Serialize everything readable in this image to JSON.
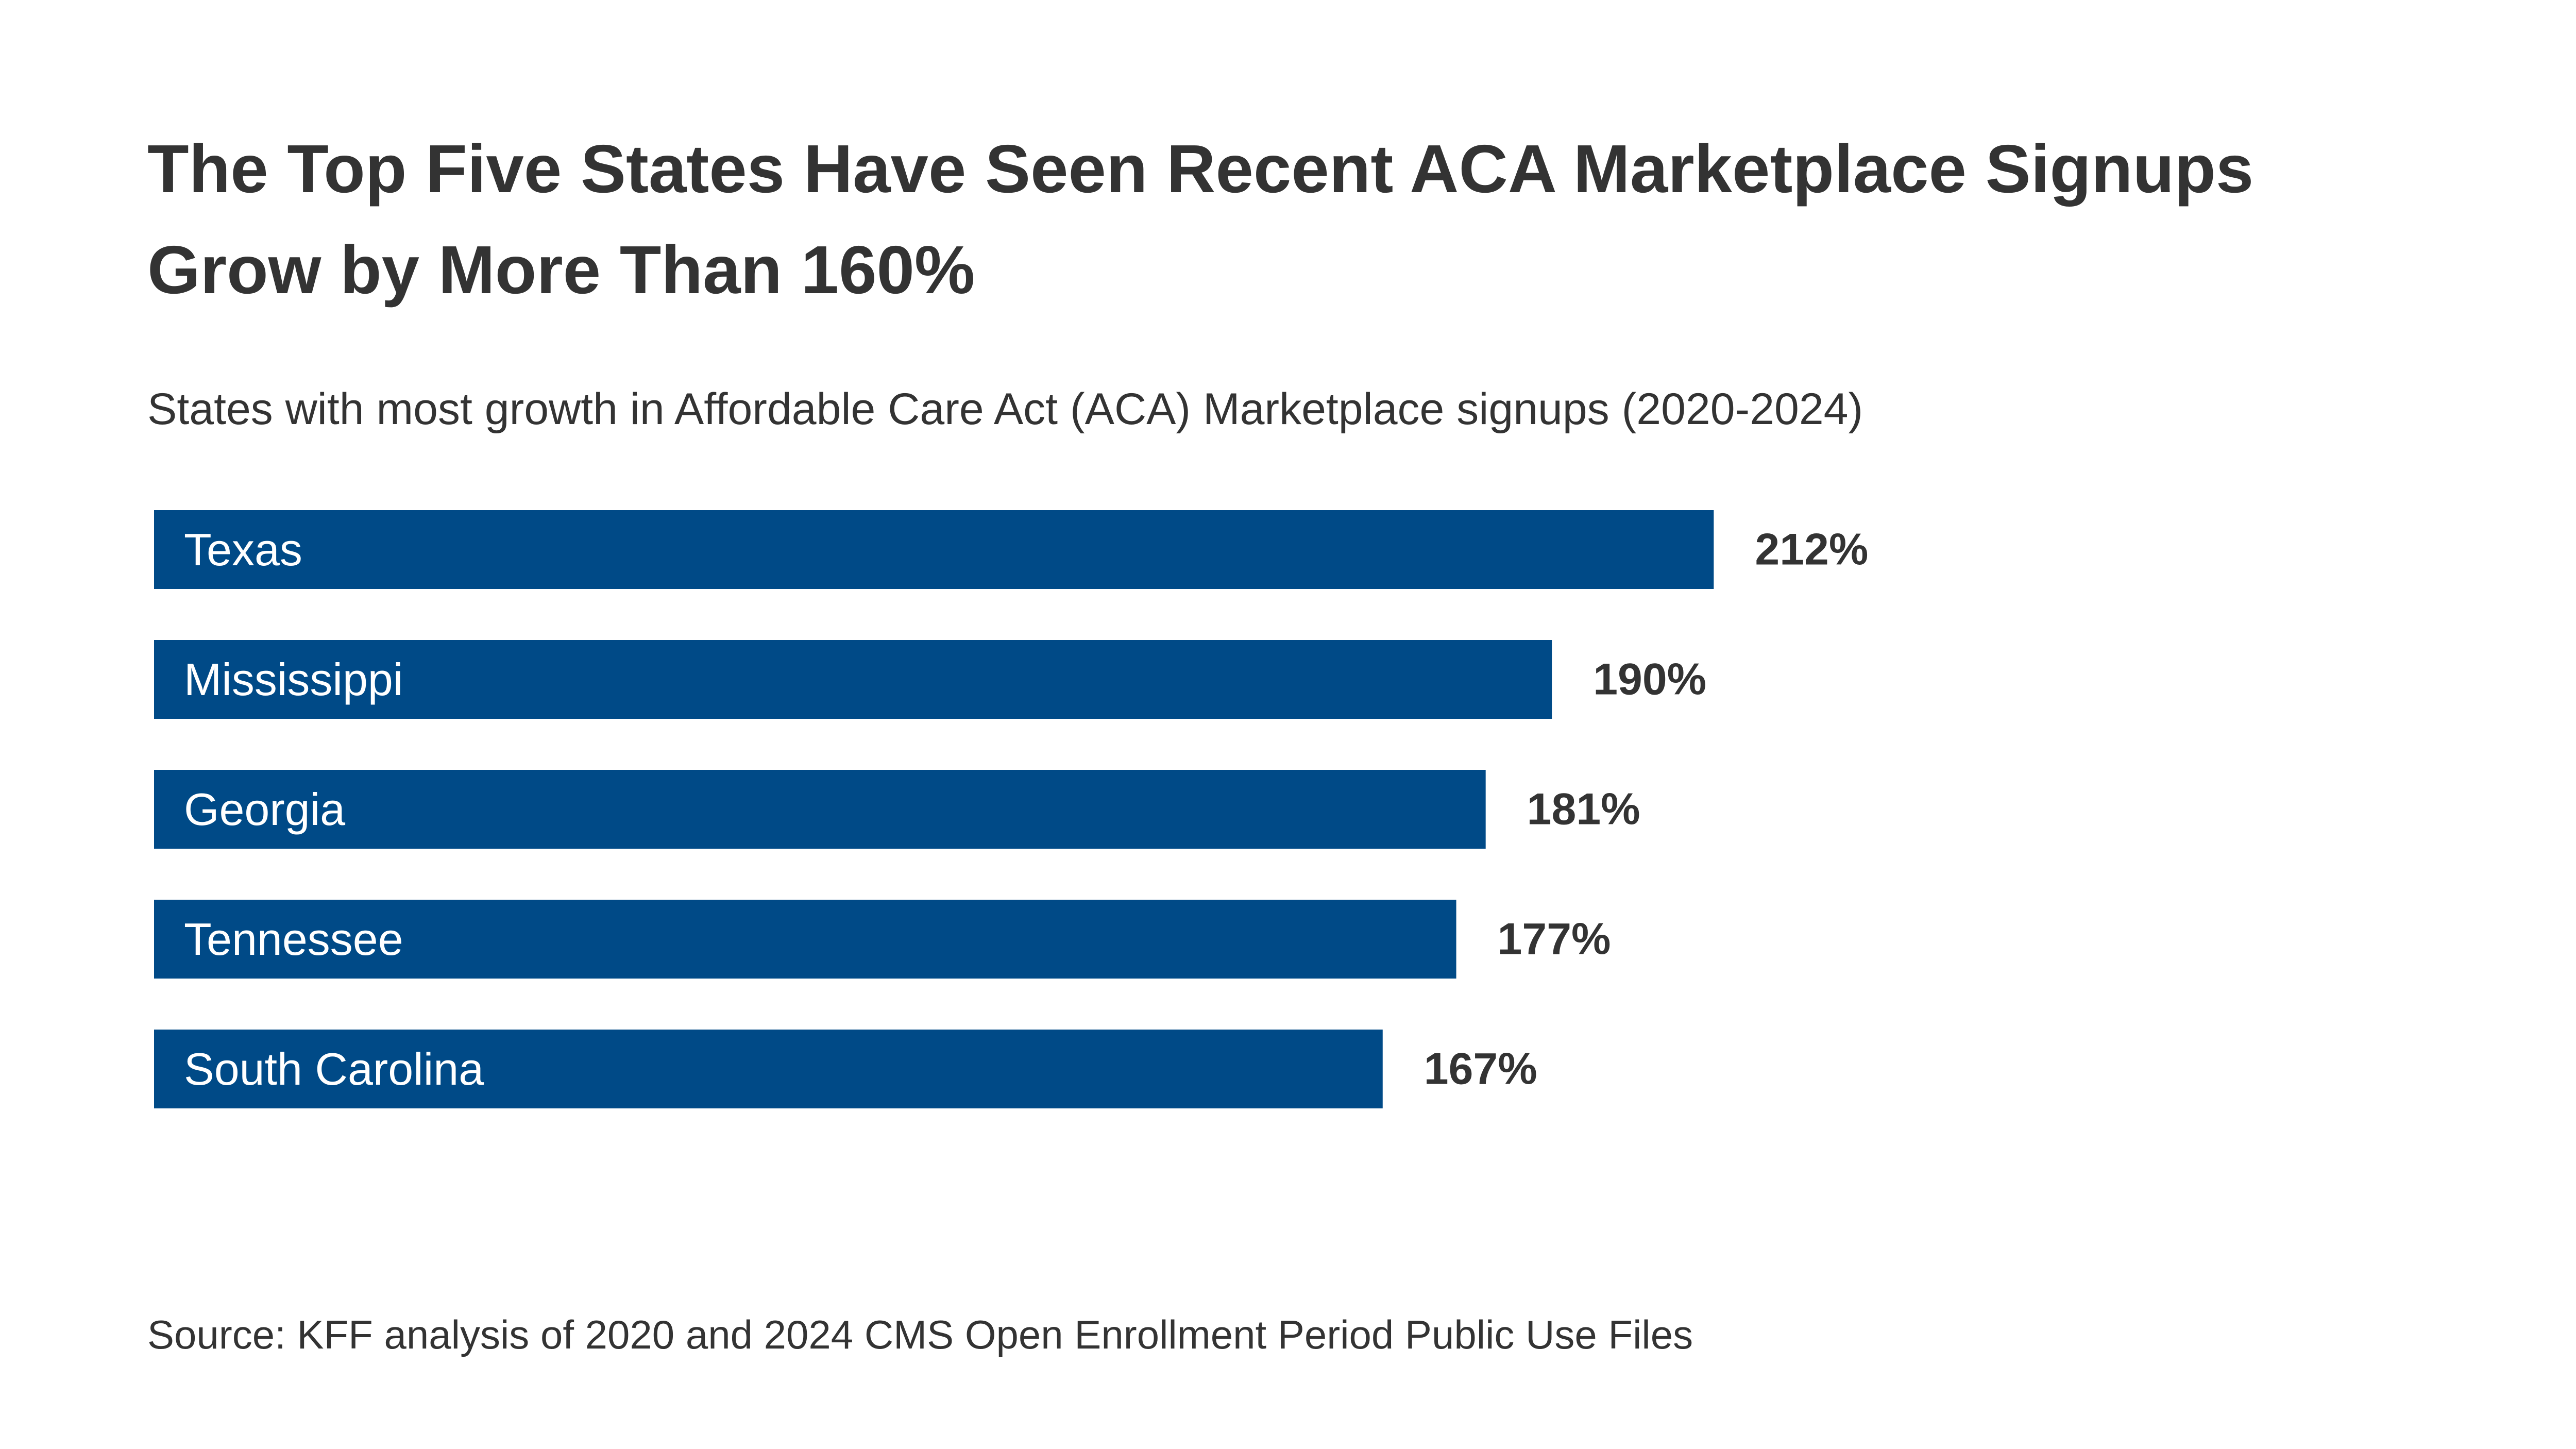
{
  "chart_data": {
    "type": "bar",
    "orientation": "horizontal",
    "title": "The Top Five States Have Seen Recent ACA Marketplace Signups Grow by More Than 160%",
    "subtitle": "States with most growth in Affordable Care Act (ACA) Marketplace signups (2020-2024)",
    "categories": [
      "Texas",
      "Mississippi",
      "Georgia",
      "Tennessee",
      "South Carolina"
    ],
    "values": [
      212,
      190,
      181,
      177,
      167
    ],
    "value_labels": [
      "212%",
      "190%",
      "181%",
      "177%",
      "167%"
    ],
    "color": "#004a87",
    "source": "Source: KFF analysis of 2020 and 2024 CMS Open Enrollment Period Public Use Files"
  }
}
